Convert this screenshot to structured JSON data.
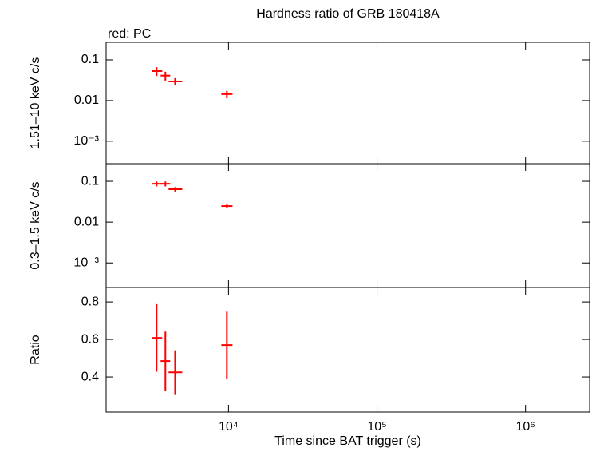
{
  "chart_data": [
    {
      "type": "scatter",
      "title": "Hardness ratio of GRB 180418A",
      "annotation": "red: PC",
      "ylabel": "1.51–10 keV c/s",
      "x": [
        3280,
        3760,
        4370,
        9750
      ],
      "xerr_minus": [
        230,
        270,
        420,
        800
      ],
      "xerr_plus": [
        300,
        290,
        510,
        890
      ],
      "values": [
        0.053,
        0.041,
        0.0295,
        0.0144
      ],
      "yerr": [
        0.013,
        0.01,
        0.006,
        0.003
      ],
      "color": "#ff0000",
      "xlim": [
        1500,
        2700000
      ],
      "xticks": [
        10000,
        100000,
        1000000
      ],
      "xlog": true,
      "ylim": [
        0.00028,
        0.27
      ],
      "ylog": true,
      "yticks": [
        0.1,
        0.01,
        {
          "value": 0.001,
          "label": "10⁻³"
        }
      ]
    },
    {
      "type": "scatter",
      "ylabel": "0.3–1.5 keV c/s",
      "x": [
        3280,
        3760,
        4370,
        9750
      ],
      "xerr_minus": [
        230,
        270,
        420,
        800
      ],
      "xerr_plus": [
        300,
        290,
        510,
        890
      ],
      "values": [
        0.087,
        0.087,
        0.064,
        0.0247
      ],
      "yerr": [
        0.012,
        0.012,
        0.008,
        0.003
      ],
      "color": "#ff0000",
      "xlim": [
        1500,
        2700000
      ],
      "xticks": [
        10000,
        100000,
        1000000
      ],
      "xlog": true,
      "ylim": [
        0.00025,
        0.27
      ],
      "ylog": true,
      "yticks": [
        0.1,
        0.01,
        {
          "value": 0.001,
          "label": "10⁻³"
        }
      ]
    },
    {
      "type": "scatter",
      "ylabel": "Ratio",
      "xlabel": "Time since BAT trigger (s)",
      "x": [
        3280,
        3760,
        4370,
        9750
      ],
      "xerr_minus": [
        230,
        270,
        420,
        800
      ],
      "xerr_plus": [
        300,
        290,
        510,
        890
      ],
      "values": [
        0.608,
        0.485,
        0.425,
        0.57
      ],
      "yerr": [
        0.18,
        0.157,
        0.117,
        0.178
      ],
      "color": "#ff0000",
      "xlim": [
        1500,
        2700000
      ],
      "xlog": true,
      "xticks": [
        {
          "value": 10000,
          "label": "10⁴"
        },
        {
          "value": 100000,
          "label": "10⁵"
        },
        {
          "value": 1000000,
          "label": "10⁶"
        }
      ],
      "ylim": [
        0.213,
        0.877
      ],
      "ylog": false,
      "yticks": [
        0.8,
        0.6,
        0.4
      ]
    }
  ]
}
